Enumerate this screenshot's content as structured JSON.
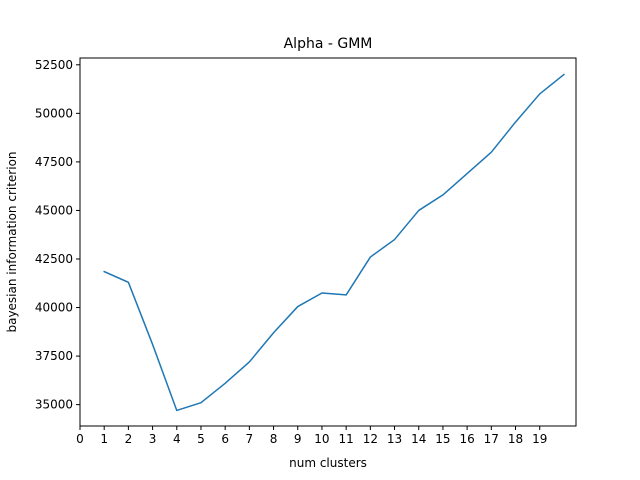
{
  "chart_data": {
    "type": "line",
    "title": "Alpha - GMM",
    "xlabel": "num clusters",
    "ylabel": "bayesian information criterion",
    "x_ticks": [
      0,
      1,
      2,
      3,
      4,
      5,
      6,
      7,
      8,
      9,
      10,
      11,
      12,
      13,
      14,
      15,
      16,
      17,
      18,
      19
    ],
    "y_ticks": [
      35000,
      37500,
      40000,
      42500,
      45000,
      47500,
      50000,
      52500
    ],
    "y_tick_labels": [
      "35000",
      "37500",
      "40000",
      "42500",
      "45000",
      "47500",
      "50000",
      "52500"
    ],
    "xlim": [
      0,
      20.5
    ],
    "ylim": [
      33900,
      52850
    ],
    "grid": false,
    "series": [
      {
        "color": "#1f77b4",
        "x": [
          1,
          2,
          3,
          4,
          5,
          6,
          7,
          8,
          9,
          10,
          11,
          12,
          13,
          14,
          15,
          16,
          17,
          18,
          19,
          20
        ],
        "values": [
          41850,
          41300,
          38100,
          34700,
          35100,
          36100,
          37200,
          38700,
          40050,
          40750,
          40650,
          42600,
          43500,
          45000,
          45800,
          46900,
          48000,
          49550,
          51000,
          52000
        ]
      }
    ]
  }
}
